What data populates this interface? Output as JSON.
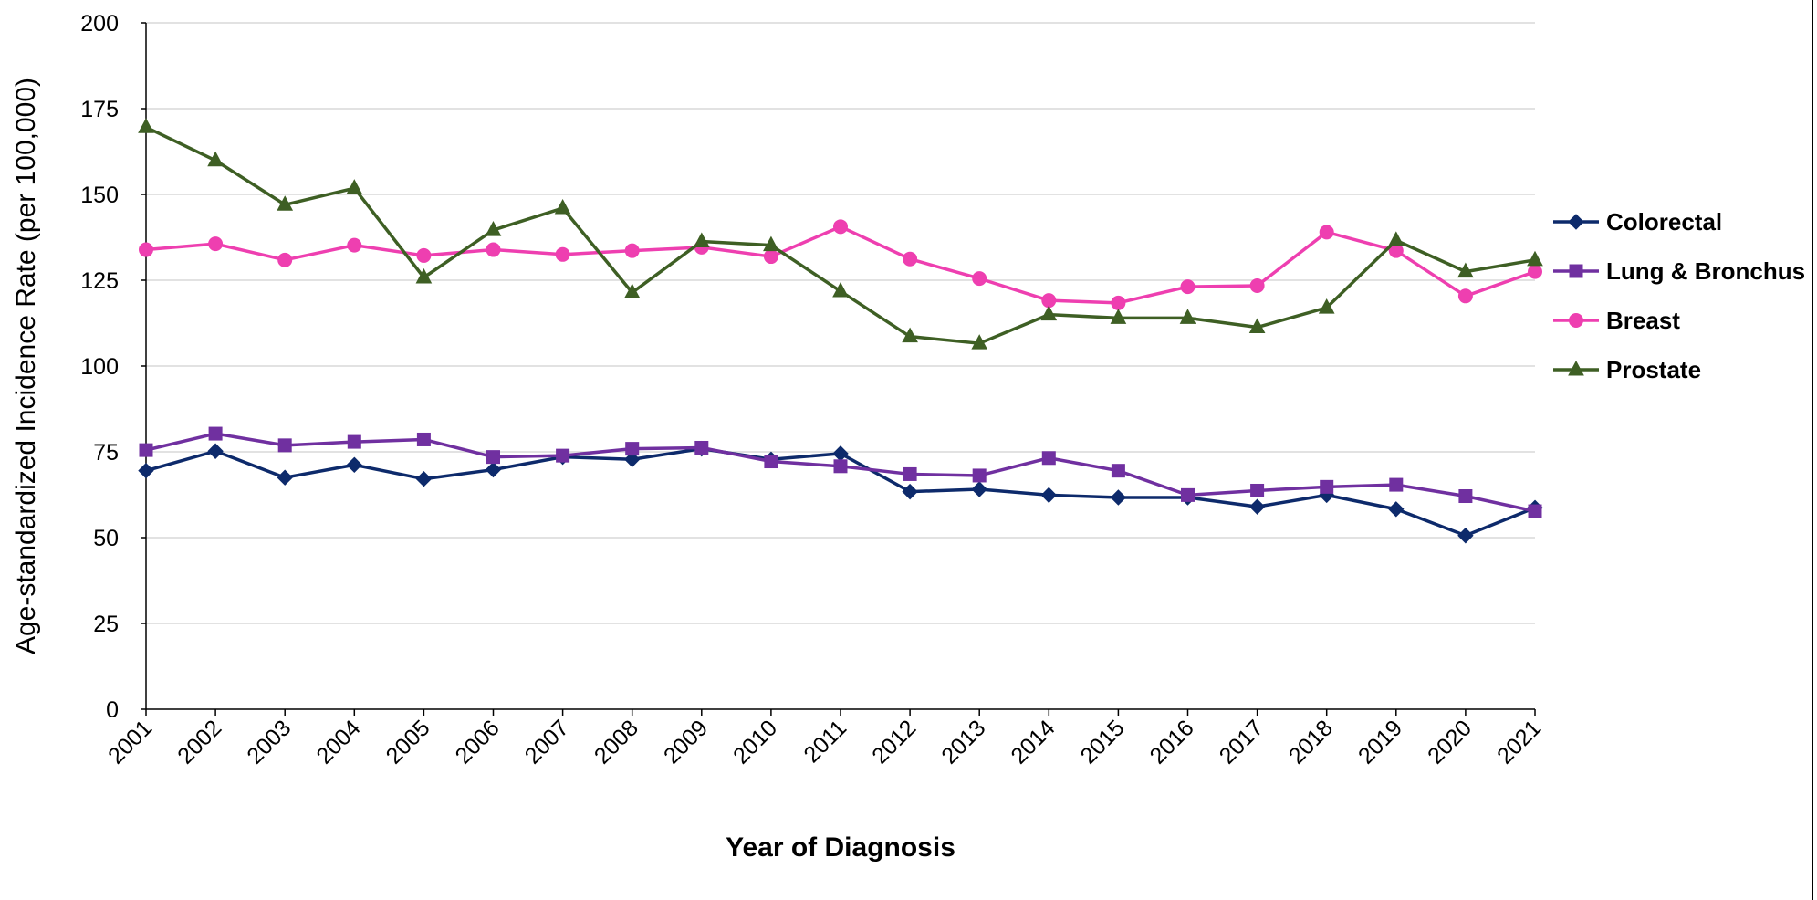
{
  "chart_data": {
    "type": "line",
    "x_label": "Year of Diagnosis",
    "y_label": "Age-standardized Incidence Rate (per 100,000)",
    "categories": [
      "2001",
      "2002",
      "2003",
      "2004",
      "2005",
      "2006",
      "2007",
      "2008",
      "2009",
      "2010",
      "2011",
      "2012",
      "2013",
      "2014",
      "2015",
      "2016",
      "2017",
      "2018",
      "2019",
      "2020",
      "2021"
    ],
    "series": [
      {
        "name": "Colorectal",
        "color": "#0d2a6b",
        "marker": "diamond",
        "values": [
          69.5,
          75.2,
          67.5,
          71.2,
          67.1,
          69.8,
          73.5,
          72.8,
          75.9,
          72.8,
          74.5,
          63.4,
          64.1,
          62.4,
          61.7,
          61.7,
          59.0,
          62.4,
          58.3,
          50.6,
          58.7
        ]
      },
      {
        "name": "Lung & Bronchus",
        "color": "#7030a0",
        "marker": "square",
        "values": [
          75.5,
          80.3,
          76.9,
          77.9,
          78.6,
          73.5,
          73.9,
          75.9,
          76.2,
          72.2,
          70.8,
          68.5,
          68.1,
          73.2,
          69.5,
          62.4,
          63.7,
          64.8,
          65.4,
          62.1,
          57.7
        ]
      },
      {
        "name": "Breast",
        "color": "#ee3fb0",
        "marker": "circle",
        "values": [
          133.9,
          135.6,
          130.9,
          135.2,
          132.2,
          133.9,
          132.5,
          133.6,
          134.6,
          131.9,
          140.6,
          131.2,
          125.5,
          119.1,
          118.4,
          123.1,
          123.4,
          139.0,
          133.6,
          120.4,
          127.5
        ]
      },
      {
        "name": "Prostate",
        "color": "#3e5f24",
        "marker": "triangle",
        "values": [
          169.6,
          159.9,
          147.0,
          151.8,
          125.8,
          139.6,
          146.0,
          121.4,
          136.3,
          135.2,
          121.8,
          108.6,
          106.6,
          115.0,
          114.0,
          114.0,
          111.3,
          117.0,
          136.6,
          127.5,
          130.9
        ]
      }
    ],
    "ylim": [
      0,
      200
    ],
    "yticks": [
      0,
      25,
      50,
      75,
      100,
      125,
      150,
      175,
      200
    ],
    "grid": true,
    "legend": "right"
  }
}
